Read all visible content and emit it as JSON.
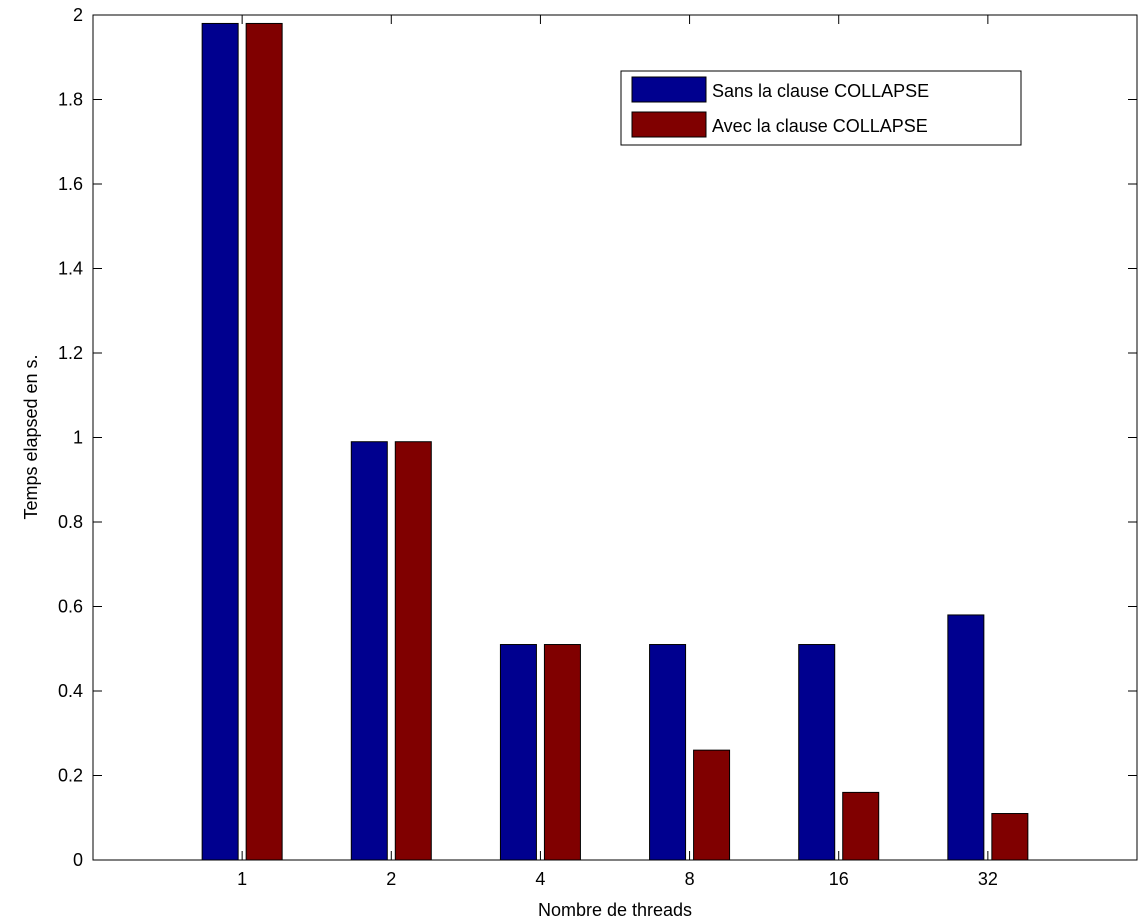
{
  "chart_data": {
    "type": "bar",
    "title": "",
    "xlabel": "Nombre de threads",
    "ylabel": "Temps elapsed en s.",
    "categories": [
      "1",
      "2",
      "4",
      "8",
      "16",
      "32"
    ],
    "series": [
      {
        "name": "Sans la clause COLLAPSE",
        "color": "#00008f",
        "values": [
          1.98,
          0.99,
          0.51,
          0.51,
          0.51,
          0.58
        ]
      },
      {
        "name": "Avec la clause COLLAPSE",
        "color": "#800000",
        "values": [
          1.98,
          0.99,
          0.51,
          0.26,
          0.16,
          0.11
        ]
      }
    ],
    "ylim": [
      0,
      2
    ],
    "yticks": [
      "0",
      "0.2",
      "0.4",
      "0.6",
      "0.8",
      "1",
      "1.2",
      "1.4",
      "1.6",
      "1.8",
      "2"
    ],
    "grid": false,
    "legend_position": "top-right"
  }
}
